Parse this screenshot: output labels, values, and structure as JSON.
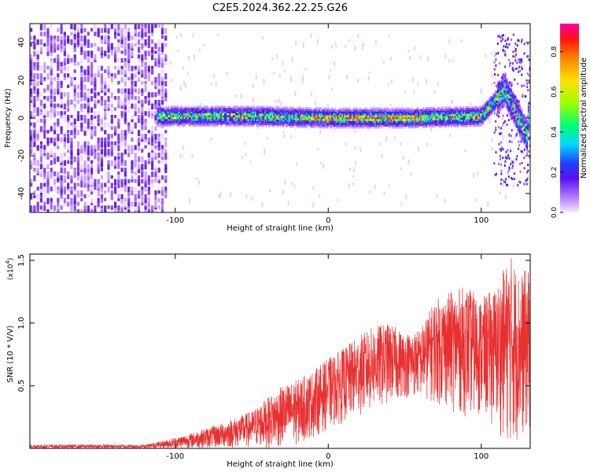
{
  "title": "C2E5.2024.362.22.25.G26",
  "chart_data": [
    {
      "type": "heatmap",
      "xlabel": "Height of straight line (km)",
      "ylabel": "Frequency (Hz)",
      "xlim": [
        -195,
        132
      ],
      "ylim": [
        -50,
        50
      ],
      "xticks": [
        -100,
        0,
        100
      ],
      "yticks": [
        -40,
        -20,
        0,
        20,
        40
      ],
      "colorbar": {
        "label": "Normalized spectral amplitude",
        "range": [
          0,
          0.94
        ],
        "ticks": [
          0.0,
          0.2,
          0.4,
          0.6,
          0.8
        ]
      },
      "description_points": [
        {
          "x": -195,
          "freq_center": 0,
          "note": "broadband noise"
        },
        {
          "x": -105,
          "freq_center": 1
        },
        {
          "x": -50,
          "freq_center": 1
        },
        {
          "x": 0,
          "freq_center": 0
        },
        {
          "x": 50,
          "freq_center": 0
        },
        {
          "x": 100,
          "freq_center": 1
        },
        {
          "x": 115,
          "freq_center": 15
        },
        {
          "x": 130,
          "freq_center": -10
        }
      ]
    },
    {
      "type": "line",
      "xlabel": "Height of straight line (km)",
      "ylabel": "SNR (10 * V/V)",
      "scale_note": "(x10",
      "scale_exp": "4",
      "close_paren": ")",
      "xlim": [
        -195,
        132
      ],
      "ylim": [
        0,
        1.55
      ],
      "xticks": [
        -100,
        0,
        100
      ],
      "yticks": [
        0.5,
        1.0,
        1.5
      ],
      "color": "#e83030",
      "envelope": {
        "x": [
          -195,
          -120,
          -108,
          -90,
          -70,
          -50,
          -40,
          -30,
          -20,
          -10,
          0,
          10,
          20,
          30,
          40,
          50,
          60,
          70,
          80,
          90,
          100,
          110,
          115,
          120,
          125,
          132
        ],
        "upper": [
          0.03,
          0.03,
          0.06,
          0.12,
          0.2,
          0.3,
          0.4,
          0.5,
          0.55,
          0.62,
          0.72,
          0.8,
          0.9,
          0.98,
          1.0,
          0.92,
          0.95,
          1.2,
          1.25,
          1.3,
          1.2,
          1.3,
          1.45,
          1.55,
          1.4,
          1.45
        ],
        "lower": [
          0.0,
          0.0,
          0.0,
          0.0,
          0.0,
          0.0,
          0.0,
          0.0,
          0.02,
          0.08,
          0.15,
          0.2,
          0.25,
          0.3,
          0.35,
          0.4,
          0.4,
          0.35,
          0.3,
          0.25,
          0.25,
          0.15,
          0.05,
          0.02,
          0.05,
          0.1
        ]
      }
    }
  ]
}
